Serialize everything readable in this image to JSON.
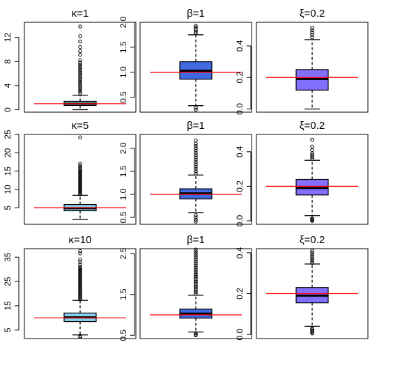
{
  "chart_data": [
    {
      "type": "box",
      "title": "κ=1",
      "ylim": [
        -0.4,
        14.5
      ],
      "ticks": [
        0,
        4,
        8,
        12
      ],
      "tick_labels": [
        "0",
        "4",
        "8",
        "12"
      ],
      "box_color": "#87ceeb",
      "reference_line": 1,
      "box": {
        "whisker_low": 0.0,
        "q1": 0.7,
        "median": 1.0,
        "q3": 1.4,
        "whisker_high": 2.4
      },
      "outliers": [
        2.7,
        3.0,
        3.3,
        3.6,
        3.9,
        4.2,
        4.5,
        4.8,
        5.1,
        5.4,
        5.7,
        6.0,
        6.3,
        6.6,
        6.9,
        7.2,
        7.5,
        7.8,
        8.2,
        9.1,
        9.7,
        10.4,
        11.3,
        12.2,
        13.8
      ]
    },
    {
      "type": "box",
      "title": "β=1",
      "ylim": [
        0.2,
        2.0
      ],
      "ticks": [
        0.5,
        1.0,
        1.5,
        2.0
      ],
      "tick_labels": [
        "0.5",
        "1.0",
        "1.5",
        "2.0"
      ],
      "box_color": "#4169e1",
      "reference_line": 1,
      "box": {
        "whisker_low": 0.33,
        "q1": 0.86,
        "median": 1.03,
        "q3": 1.21,
        "whisker_high": 1.75
      },
      "outliers": [
        0.25,
        0.29,
        1.78,
        1.81,
        1.84,
        1.87,
        1.9,
        1.93
      ]
    },
    {
      "type": "box",
      "title": "ξ=0.2",
      "ylim": [
        -0.02,
        0.55
      ],
      "ticks": [
        0.0,
        0.2,
        0.4
      ],
      "tick_labels": [
        "0.0",
        "0.2",
        "0.4"
      ],
      "box_color": "#8470ff",
      "reference_line": 0.2,
      "box": {
        "whisker_low": 0.0,
        "q1": 0.12,
        "median": 0.19,
        "q3": 0.25,
        "whisker_high": 0.44
      },
      "outliers": [
        0.455,
        0.47,
        0.485,
        0.5,
        0.515
      ]
    },
    {
      "type": "box",
      "title": "κ=5",
      "ylim": [
        0.5,
        25.0
      ],
      "ticks": [
        5,
        10,
        15,
        20,
        25
      ],
      "tick_labels": [
        "5",
        "10",
        "15",
        "20",
        "25"
      ],
      "box_color": "#87ceeb",
      "reference_line": 5,
      "box": {
        "whisker_low": 1.8,
        "q1": 4.2,
        "median": 4.9,
        "q3": 5.9,
        "whisker_high": 8.4
      },
      "outliers": [
        8.7,
        9.0,
        9.3,
        9.6,
        9.9,
        10.2,
        10.5,
        10.8,
        11.1,
        11.4,
        11.7,
        12.0,
        12.3,
        12.6,
        12.9,
        13.2,
        13.5,
        13.8,
        14.1,
        14.4,
        14.7,
        15.0,
        15.3,
        15.6,
        16.0,
        16.5,
        17.0,
        24.2
      ]
    },
    {
      "type": "box",
      "title": "β=1",
      "ylim": [
        0.35,
        2.3
      ],
      "ticks": [
        0.5,
        1.0,
        1.5,
        2.0
      ],
      "tick_labels": [
        "0.5",
        "1.0",
        "1.5",
        "2.0"
      ],
      "box_color": "#4169e1",
      "reference_line": 1,
      "box": {
        "whisker_low": 0.6,
        "q1": 0.9,
        "median": 1.02,
        "q3": 1.12,
        "whisker_high": 1.42
      },
      "outliers": [
        0.41,
        0.45,
        0.5,
        0.55,
        1.45,
        1.5,
        1.55,
        1.6,
        1.65,
        1.7,
        1.75,
        1.8,
        1.85,
        1.9,
        1.95,
        2.0,
        2.05,
        2.1,
        2.17
      ]
    },
    {
      "type": "box",
      "title": "ξ=0.2",
      "ylim": [
        -0.02,
        0.5
      ],
      "ticks": [
        0.0,
        0.2,
        0.4
      ],
      "tick_labels": [
        "0.0",
        "0.2",
        "0.4"
      ],
      "box_color": "#8470ff",
      "reference_line": 0.2,
      "box": {
        "whisker_low": 0.03,
        "q1": 0.15,
        "median": 0.19,
        "q3": 0.24,
        "whisker_high": 0.35
      },
      "outliers": [
        0.0,
        0.005,
        0.01,
        0.015,
        0.36,
        0.37,
        0.38,
        0.39,
        0.41,
        0.43,
        0.47
      ]
    },
    {
      "type": "box",
      "title": "κ=10",
      "ylim": [
        1.5,
        38.5
      ],
      "ticks": [
        5,
        15,
        25,
        35
      ],
      "tick_labels": [
        "5",
        "15",
        "25",
        "35"
      ],
      "box_color": "#87ceeb",
      "reference_line": 10,
      "box": {
        "whisker_low": 3.0,
        "q1": 8.5,
        "median": 10.2,
        "q3": 12.0,
        "whisker_high": 17.2
      },
      "outliers": [
        2.2,
        2.6,
        17.6,
        18.0,
        18.4,
        18.8,
        19.2,
        19.6,
        20.0,
        20.4,
        20.8,
        21.2,
        21.6,
        22.0,
        22.4,
        22.8,
        23.2,
        23.6,
        24.0,
        24.4,
        24.8,
        25.2,
        25.6,
        26.0,
        26.4,
        26.8,
        27.2,
        27.6,
        28.0,
        28.4,
        28.8,
        29.2,
        29.6,
        30.0,
        30.5,
        31.0,
        32.0,
        33.0,
        34.0,
        36.5,
        37.5
      ]
    },
    {
      "type": "box",
      "title": "β=1",
      "ylim": [
        0.42,
        2.62
      ],
      "ticks": [
        0.5,
        1.5,
        2.5
      ],
      "tick_labels": [
        "0.5",
        "1.5",
        "2.5"
      ],
      "box_color": "#4169e1",
      "reference_line": 1,
      "box": {
        "whisker_low": 0.58,
        "q1": 0.92,
        "median": 1.03,
        "q3": 1.14,
        "whisker_high": 1.48
      },
      "outliers": [
        0.5,
        0.52,
        0.55,
        1.52,
        1.56,
        1.6,
        1.64,
        1.68,
        1.72,
        1.76,
        1.8,
        1.84,
        1.88,
        1.92,
        1.96,
        2.0,
        2.05,
        2.1,
        2.15,
        2.2,
        2.25,
        2.3,
        2.35,
        2.4,
        2.45,
        2.5,
        2.55,
        2.6
      ]
    },
    {
      "type": "box",
      "title": "ξ=0.2",
      "ylim": [
        -0.02,
        0.42
      ],
      "ticks": [
        0.0,
        0.2,
        0.4
      ],
      "tick_labels": [
        "0.0",
        "0.2",
        "0.4"
      ],
      "box_color": "#8470ff",
      "reference_line": 0.2,
      "box": {
        "whisker_low": 0.04,
        "q1": 0.155,
        "median": 0.19,
        "q3": 0.23,
        "whisker_high": 0.345
      },
      "outliers": [
        0.005,
        0.01,
        0.015,
        0.02,
        0.025,
        0.03,
        0.35,
        0.36,
        0.37,
        0.38,
        0.39,
        0.4,
        0.41
      ]
    }
  ]
}
